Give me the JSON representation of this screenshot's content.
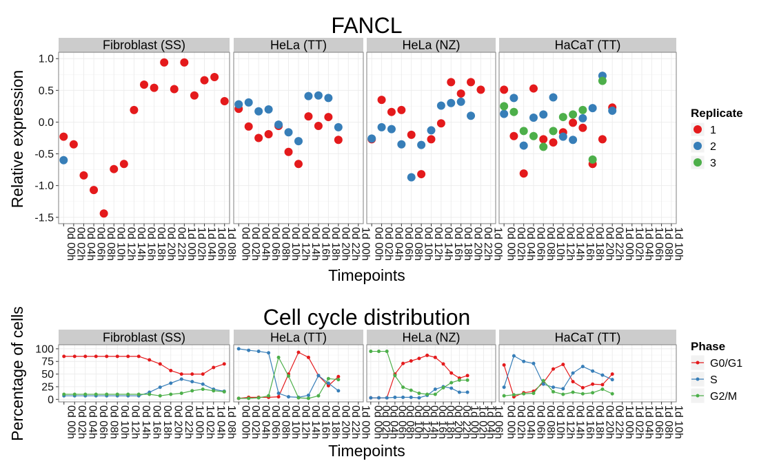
{
  "colors": {
    "red": "#E41A1C",
    "blue": "#377EB8",
    "green": "#4DAF4A",
    "strip": "#CCCCCC",
    "panel_border": "#7F7F7F",
    "grid": "#EBEBEB"
  },
  "chart_data": [
    {
      "type": "scatter",
      "title": "FANCL",
      "xlabel": "Timepoints",
      "ylabel": "Relative expression",
      "ylim": [
        -1.6,
        1.1
      ],
      "yticks": [
        "1.0",
        "0.5",
        "0.0",
        "-0.5",
        "-1.0",
        "-1.5"
      ],
      "ytick_values": [
        1.0,
        0.5,
        0.0,
        -0.5,
        -1.0,
        -1.5
      ],
      "grid": true,
      "legend": {
        "title": "Replicate",
        "position": "right",
        "entries": [
          "1",
          "2",
          "3"
        ]
      },
      "facets": [
        {
          "name": "Fibroblast (SS)",
          "x": [
            "0d 00h",
            "0d 02h",
            "0d 04h",
            "0d 06h",
            "0d 08h",
            "0d 10h",
            "0d 12h",
            "0d 14h",
            "0d 16h",
            "0d 18h",
            "0d 20h",
            "0d 22h",
            "1d 00h",
            "1d 02h",
            "1d 04h",
            "1d 06h",
            "1d 08h"
          ],
          "series": [
            {
              "name": "1",
              "values": [
                -0.23,
                -0.35,
                -0.84,
                -1.07,
                -1.44,
                -0.74,
                -0.66,
                0.19,
                0.59,
                0.54,
                0.94,
                0.52,
                0.94,
                0.42,
                0.66,
                0.71,
                0.33
              ]
            },
            {
              "name": "2",
              "values": [
                -0.6,
                null,
                null,
                null,
                null,
                null,
                null,
                null,
                null,
                null,
                null,
                null,
                null,
                null,
                null,
                null,
                null
              ]
            }
          ]
        },
        {
          "name": "HeLa (TT)",
          "x": [
            "0d 00h",
            "0d 02h",
            "0d 04h",
            "0d 06h",
            "0d 08h",
            "0d 10h",
            "0d 12h",
            "0d 14h",
            "0d 16h",
            "0d 18h",
            "0d 20h",
            "0d 22h",
            "1d 00h"
          ],
          "series": [
            {
              "name": "1",
              "values": [
                0.21,
                -0.07,
                -0.25,
                -0.19,
                -0.06,
                -0.47,
                -0.66,
                0.09,
                -0.06,
                0.08,
                -0.28,
                null,
                null
              ]
            },
            {
              "name": "2",
              "values": [
                0.28,
                0.31,
                0.17,
                0.2,
                -0.04,
                -0.16,
                -0.3,
                0.41,
                0.42,
                0.38,
                -0.08,
                null,
                null
              ]
            }
          ]
        },
        {
          "name": "HeLa (NZ)",
          "x": [
            "0d 00h",
            "0d 02h",
            "0d 04h",
            "0d 06h",
            "0d 08h",
            "0d 10h",
            "0d 12h",
            "0d 14h",
            "0d 16h",
            "0d 18h",
            "0d 20h",
            "0d 22h",
            "1d 00h"
          ],
          "series": [
            {
              "name": "1",
              "values": [
                -0.27,
                0.35,
                0.16,
                0.19,
                -0.2,
                -0.82,
                -0.27,
                -0.02,
                0.63,
                0.45,
                0.63,
                0.51,
                null
              ]
            },
            {
              "name": "2",
              "values": [
                -0.26,
                -0.08,
                -0.11,
                -0.35,
                -0.87,
                -0.36,
                -0.13,
                0.26,
                0.3,
                0.32,
                0.1,
                null,
                null
              ]
            }
          ]
        },
        {
          "name": "HaCaT (TT)",
          "x": [
            "0d 00h",
            "0d 02h",
            "0d 04h",
            "0d 06h",
            "0d 08h",
            "0d 10h",
            "0d 12h",
            "0d 14h",
            "0d 16h",
            "0d 18h",
            "0d 20h",
            "0d 22h",
            "1d 00h",
            "1d 02h",
            "1d 04h",
            "1d 06h",
            "1d 08h",
            "1d 10h"
          ],
          "series": [
            {
              "name": "1",
              "values": [
                0.51,
                -0.22,
                -0.81,
                0.53,
                -0.27,
                -0.32,
                -0.16,
                -0.01,
                -0.09,
                -0.66,
                -0.27,
                0.23,
                null,
                null,
                null,
                null,
                null,
                null
              ]
            },
            {
              "name": "2",
              "values": [
                0.13,
                0.38,
                -0.37,
                0.07,
                0.12,
                0.39,
                -0.23,
                -0.28,
                0.06,
                0.22,
                0.73,
                0.18,
                null,
                null,
                null,
                null,
                null,
                null
              ]
            },
            {
              "name": "3",
              "values": [
                0.25,
                0.16,
                -0.14,
                -0.22,
                -0.39,
                -0.14,
                0.08,
                0.12,
                0.19,
                -0.59,
                0.65,
                null,
                null,
                null,
                null,
                null,
                null,
                null
              ]
            }
          ]
        }
      ]
    },
    {
      "type": "line",
      "title": "Cell cycle distribution",
      "xlabel": "Timepoints",
      "ylabel": "Percentage of cells",
      "ylim": [
        -5,
        108
      ],
      "yticks": [
        "100",
        "75",
        "50",
        "25",
        "0"
      ],
      "ytick_values": [
        100,
        75,
        50,
        25,
        0
      ],
      "grid": true,
      "legend": {
        "title": "Phase",
        "position": "right",
        "entries": [
          "G0/G1",
          "S",
          "G2/M"
        ]
      },
      "facets": [
        {
          "name": "Fibroblast (SS)",
          "x": [
            "0d 00h",
            "0d 02h",
            "0d 04h",
            "0d 06h",
            "0d 08h",
            "0d 10h",
            "0d 12h",
            "0d 14h",
            "0d 16h",
            "0d 18h",
            "0d 20h",
            "0d 22h",
            "1d 00h",
            "1d 02h",
            "1d 04h",
            "1d 08h"
          ],
          "series": [
            {
              "name": "G0/G1",
              "values": [
                85,
                85,
                85,
                85,
                85,
                85,
                85,
                85,
                78,
                70,
                57,
                50,
                50,
                50,
                63,
                70
              ]
            },
            {
              "name": "S",
              "values": [
                7,
                7,
                7,
                7,
                7,
                7,
                7,
                7,
                14,
                24,
                32,
                40,
                35,
                30,
                20,
                16
              ]
            },
            {
              "name": "G2/M",
              "values": [
                10,
                10,
                10,
                10,
                10,
                10,
                10,
                10,
                10,
                7,
                10,
                12,
                17,
                20,
                17,
                15
              ]
            }
          ]
        },
        {
          "name": "HeLa (TT)",
          "x": [
            "0d 00h",
            "0d 02h",
            "0d 04h",
            "0d 06h",
            "0d 08h",
            "0d 10h",
            "0d 12h",
            "0d 14h",
            "0d 16h",
            "0d 18h",
            "0d 20h",
            "0d 22h",
            "1d 00h"
          ],
          "series": [
            {
              "name": "G0/G1",
              "values": [
                2,
                4,
                4,
                4,
                5,
                50,
                93,
                83,
                47,
                27,
                45,
                null,
                null
              ]
            },
            {
              "name": "S",
              "values": [
                100,
                97,
                95,
                92,
                12,
                5,
                4,
                8,
                47,
                32,
                17,
                null,
                null
              ]
            },
            {
              "name": "G2/M",
              "values": [
                2,
                2,
                3,
                7,
                83,
                46,
                3,
                2,
                7,
                41,
                39,
                null,
                null
              ]
            }
          ]
        },
        {
          "name": "HeLa (NZ)",
          "x": [
            "0d 00h",
            "0d 02h",
            "0d 04h",
            "0d 06h",
            "0d 08h",
            "0d 10h",
            "0d 12h",
            "0d 14h",
            "0d 16h",
            "0d 18h",
            "0d 20h",
            "0d 22h",
            "1d 00h",
            "1d 02h",
            "1d 04h",
            "1d 06h"
          ],
          "series": [
            {
              "name": "G0/G1",
              "values": [
                3,
                3,
                3,
                50,
                71,
                76,
                81,
                87,
                83,
                70,
                52,
                42,
                47,
                null,
                null,
                null
              ]
            },
            {
              "name": "S",
              "values": [
                3,
                3,
                3,
                4,
                4,
                4,
                3,
                8,
                20,
                25,
                22,
                14,
                14,
                null,
                null,
                null
              ]
            },
            {
              "name": "G2/M",
              "values": [
                95,
                95,
                95,
                47,
                24,
                18,
                12,
                10,
                10,
                23,
                33,
                38,
                38,
                null,
                null,
                null
              ]
            }
          ]
        },
        {
          "name": "HaCaT (TT)",
          "x": [
            "0d 00h",
            "0d 02h",
            "0d 04h",
            "0d 06h",
            "0d 08h",
            "0d 10h",
            "0d 12h",
            "0d 14h",
            "0d 16h",
            "0d 18h",
            "0d 20h",
            "0d 22h",
            "1d 00h",
            "1d 02h",
            "1d 04h",
            "1d 06h",
            "1d 08h",
            "1d 10h"
          ],
          "series": [
            {
              "name": "G0/G1",
              "values": [
                68,
                5,
                13,
                16,
                33,
                60,
                69,
                35,
                23,
                30,
                29,
                50,
                null,
                null,
                null,
                null,
                null,
                null
              ]
            },
            {
              "name": "S",
              "values": [
                24,
                86,
                75,
                71,
                30,
                24,
                21,
                52,
                65,
                56,
                48,
                39,
                null,
                null,
                null,
                null,
                null,
                null
              ]
            },
            {
              "name": "G2/M",
              "values": [
                7,
                9,
                11,
                12,
                37,
                15,
                10,
                14,
                11,
                13,
                20,
                11,
                null,
                null,
                null,
                null,
                null,
                null
              ]
            }
          ]
        }
      ]
    }
  ]
}
